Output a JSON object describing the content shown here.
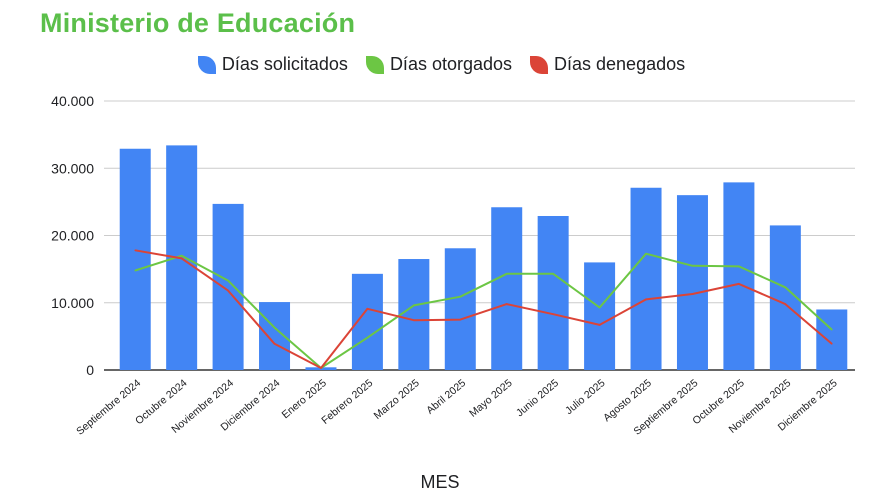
{
  "chart_data": {
    "type": "bar",
    "title": "Ministerio de Educación",
    "xlabel": "MES",
    "ylabel": "",
    "ylim": [
      0,
      40000
    ],
    "yticks": [
      "0",
      "10.000",
      "20.000",
      "30.000",
      "40.000"
    ],
    "grid": true,
    "legend_position": "top",
    "categories": [
      "Septiembre 2024",
      "Octubre 2024",
      "Noviembre 2024",
      "Diciembre 2024",
      "Enero 2025",
      "Febrero 2025",
      "Marzo 2025",
      "Abril 2025",
      "Mayo 2025",
      "Junio 2025",
      "Julio 2025",
      "Agosto 2025",
      "Septiembre 2025",
      "Octubre 2025",
      "Noviembre 2025",
      "Diciembre 2025"
    ],
    "series": [
      {
        "name": "Días solicitados",
        "type": "bar",
        "color": "#4285f4",
        "values": [
          32900,
          33400,
          24700,
          10100,
          400,
          14300,
          16500,
          18100,
          24200,
          22900,
          16000,
          27100,
          26000,
          27900,
          21500,
          9000
        ]
      },
      {
        "name": "Días otorgados",
        "type": "line",
        "color": "#6cc644",
        "values": [
          14800,
          17000,
          13300,
          6300,
          300,
          4800,
          9600,
          10900,
          14300,
          14300,
          9300,
          17300,
          15500,
          15400,
          12300,
          6000
        ]
      },
      {
        "name": "Días denegados",
        "type": "line",
        "color": "#db4437",
        "values": [
          17800,
          16600,
          11800,
          3900,
          300,
          9100,
          7400,
          7500,
          9800,
          8300,
          6700,
          10500,
          11300,
          12800,
          9800,
          3900
        ]
      }
    ]
  },
  "colors": {
    "title": "#5bbf4a",
    "grid": "#cccccc",
    "axis": "#333333"
  }
}
